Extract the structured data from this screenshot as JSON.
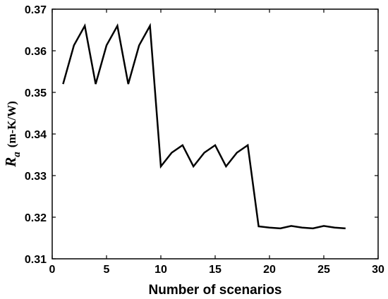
{
  "chart_data": {
    "type": "line",
    "xlabel": "Number of scenarios",
    "ylabel": {
      "symbol": "R",
      "subscript": "a",
      "unit": "(m-K/W)"
    },
    "xlim": [
      0,
      30
    ],
    "ylim": [
      0.31,
      0.37
    ],
    "xticks": [
      0,
      5,
      10,
      15,
      20,
      25,
      30
    ],
    "xtick_labels": [
      "0",
      "5",
      "10",
      "15",
      "20",
      "25",
      "30"
    ],
    "yticks": [
      0.31,
      0.32,
      0.33,
      0.34,
      0.35,
      0.36,
      0.37
    ],
    "ytick_labels": [
      "0.31",
      "0.32",
      "0.33",
      "0.34",
      "0.35",
      "0.36",
      "0.37"
    ],
    "grid": false,
    "line_color": "#000000",
    "series": [
      {
        "x": [
          1,
          2,
          3,
          4,
          5,
          6,
          7,
          8,
          9,
          10,
          11,
          12,
          13,
          14,
          15,
          16,
          17,
          18,
          19,
          20,
          21,
          22,
          23,
          24,
          25,
          26,
          27
        ],
        "y": [
          0.352,
          0.3613,
          0.366,
          0.352,
          0.3613,
          0.366,
          0.352,
          0.3613,
          0.366,
          0.3322,
          0.3355,
          0.3373,
          0.3322,
          0.3355,
          0.3373,
          0.3322,
          0.3355,
          0.3373,
          0.3178,
          0.3175,
          0.3173,
          0.3179,
          0.3175,
          0.3173,
          0.3179,
          0.3175,
          0.3173
        ]
      }
    ]
  }
}
